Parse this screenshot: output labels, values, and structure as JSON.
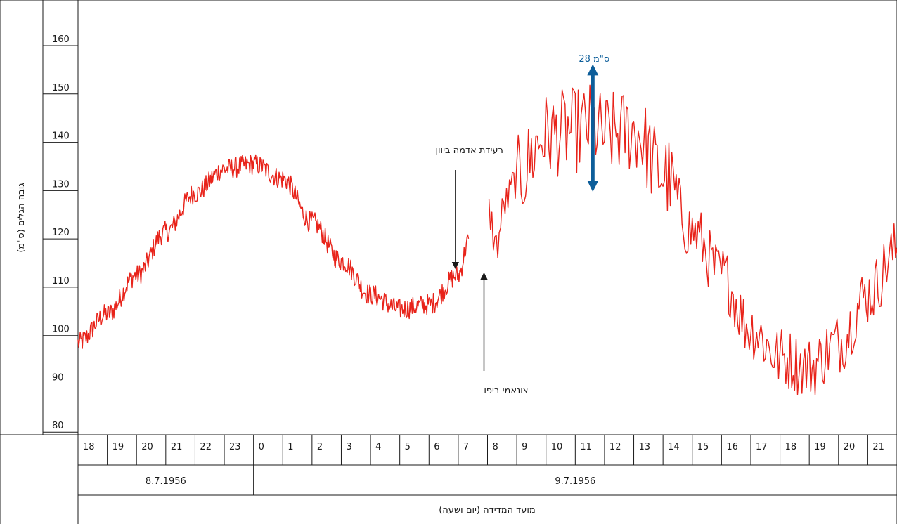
{
  "chart_data": {
    "type": "line",
    "xlabel": "מועד המדידה (יום ושעה)",
    "ylabel": "גובה הגלים (ס\"מ)",
    "ylim": [
      78,
      168
    ],
    "y_ticks": [
      80,
      90,
      100,
      110,
      120,
      130,
      140,
      150,
      160
    ],
    "hour_ticks": [
      "18",
      "19",
      "20",
      "21",
      "22",
      "23",
      "0",
      "1",
      "2",
      "3",
      "4",
      "5",
      "6",
      "7",
      "8",
      "9",
      "10",
      "11",
      "12",
      "13",
      "14",
      "15",
      "16",
      "17",
      "18",
      "19",
      "20",
      "21"
    ],
    "dates": [
      {
        "label": "8.7.1956",
        "from_index": 0,
        "to_index": 6
      },
      {
        "label": "9.7.1956",
        "from_index": 6,
        "to_index": 28
      }
    ],
    "line_color": "#e8231a",
    "amplitude_color": "#0d5e9a",
    "series": [
      {
        "segments": [
          {
            "x": [
              18.0,
              19.0,
              20.0,
              21.0,
              22.0,
              23.0,
              24.0,
              25.0,
              26.0,
              27.0,
              28.0,
              29.0,
              30.0,
              31.0,
              31.35
            ],
            "y": [
              97,
              103,
              111,
              120,
              128,
              133,
              134,
              131,
              122,
              114,
              107,
              104,
              105,
              111,
              118
            ]
          },
          {
            "x": [
              32.05,
              32.3,
              32.6,
              33.0,
              34.0,
              35.0,
              35.5,
              36.0,
              37.0,
              38.0,
              39.0,
              40.0,
              41.0,
              42.0,
              43.0,
              44.0,
              45.0,
              46.0,
              46.4
            ],
            "y": [
              124,
              117,
              126,
              131,
              140,
              141,
              142,
              140,
              141,
              132,
              120,
              111,
              100,
              94,
              92,
              97,
              107,
              116,
              122
            ]
          }
        ]
      }
    ],
    "amplitude_marker": {
      "label": "28 ס\"מ",
      "x": 35.6,
      "y_from": 128,
      "y_to": 155
    },
    "annotations": [
      {
        "label": "רעידת אדמה ביוון",
        "x": 31.0,
        "y_arrow_tip": 116
      },
      {
        "label": "צונאמי ביפו",
        "x": 32.0,
        "y_arrow_tip": 114
      }
    ]
  }
}
